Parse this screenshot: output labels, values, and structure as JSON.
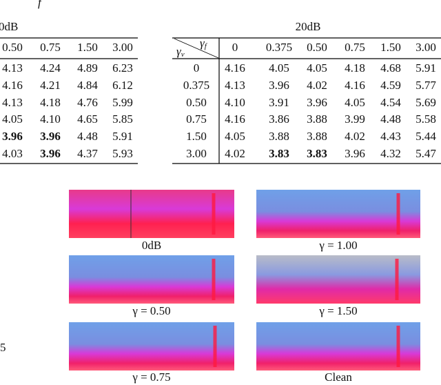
{
  "fragments": {
    "top": "f",
    "side": "5"
  },
  "left_table": {
    "title": "0dB",
    "columns": [
      "0.50",
      "0.75",
      "1.50",
      "3.00"
    ],
    "rows": [
      [
        "4.13",
        "4.24",
        "4.89",
        "6.23"
      ],
      [
        "4.16",
        "4.21",
        "4.84",
        "6.12"
      ],
      [
        "4.13",
        "4.18",
        "4.76",
        "5.99"
      ],
      [
        "4.05",
        "4.10",
        "4.65",
        "5.85"
      ],
      [
        "3.96",
        "3.96",
        "4.48",
        "5.91"
      ],
      [
        "4.03",
        "3.96",
        "4.37",
        "5.93"
      ]
    ],
    "bold": [
      [
        4,
        0
      ],
      [
        4,
        1
      ],
      [
        5,
        1
      ]
    ]
  },
  "right_table": {
    "title": "20dB",
    "corner": {
      "row_symbol": "γ",
      "row_sub": "v",
      "col_symbol": "γ",
      "col_sub": "f"
    },
    "columns": [
      "0",
      "0.375",
      "0.50",
      "0.75",
      "1.50",
      "3.00"
    ],
    "row_labels": [
      "0",
      "0.375",
      "0.50",
      "0.75",
      "1.50",
      "3.00"
    ],
    "rows": [
      [
        "4.16",
        "4.05",
        "4.05",
        "4.18",
        "4.68",
        "5.91"
      ],
      [
        "4.13",
        "3.96",
        "4.02",
        "4.16",
        "4.59",
        "5.77"
      ],
      [
        "4.10",
        "3.91",
        "3.96",
        "4.05",
        "4.54",
        "5.69"
      ],
      [
        "4.16",
        "3.86",
        "3.88",
        "3.99",
        "4.48",
        "5.58"
      ],
      [
        "4.05",
        "3.88",
        "3.88",
        "4.02",
        "4.43",
        "5.44"
      ],
      [
        "4.02",
        "3.83",
        "3.83",
        "3.96",
        "4.32",
        "5.47"
      ]
    ],
    "bold": [
      [
        5,
        1
      ],
      [
        5,
        2
      ]
    ]
  },
  "spectrograms": [
    "0dB",
    "γ = 1.00",
    "γ = 0.50",
    "γ = 1.50",
    "γ = 0.75",
    "Clean"
  ]
}
